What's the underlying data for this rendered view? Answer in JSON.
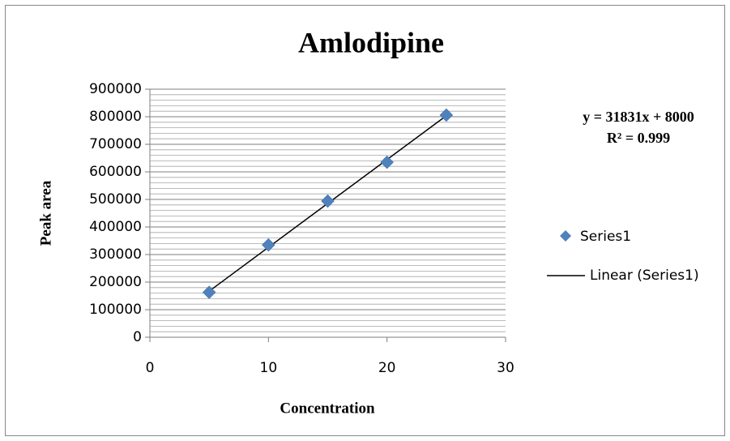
{
  "chart_data": {
    "type": "scatter",
    "title": "Amlodipine",
    "x_label": "Concentration",
    "y_label": "Peak area",
    "series": [
      {
        "name": "Series1",
        "color": "#4f81bd",
        "x": [
          5,
          10,
          15,
          20,
          25
        ],
        "values": [
          163000,
          335000,
          494000,
          635000,
          806000
        ]
      }
    ],
    "trendline": {
      "name": "Linear (Series1)",
      "color": "#000000",
      "slope": 31831,
      "intercept": 8000,
      "equation": "y = 31831x + 8000",
      "r_squared": "R² = 0.999"
    },
    "xlim": [
      0,
      30
    ],
    "xticks": [
      0,
      10,
      20,
      30
    ],
    "ylim": [
      0,
      900000
    ],
    "yticks": [
      0,
      100000,
      200000,
      300000,
      400000,
      500000,
      600000,
      700000,
      800000,
      900000
    ],
    "grid": true,
    "minor_grid_step": 20000,
    "legend": "right"
  }
}
